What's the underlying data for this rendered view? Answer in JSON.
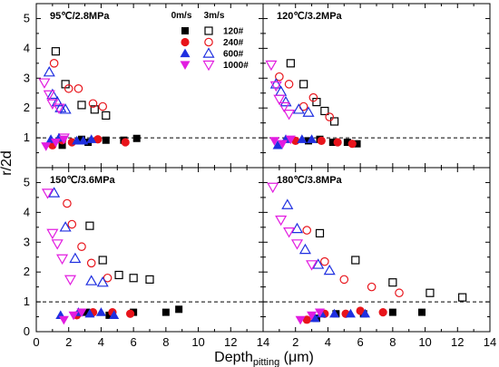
{
  "chart_data": {
    "type": "scatter",
    "layout": "2x2 panels with shared axes",
    "ylabel": "r/2d",
    "xlabel": "Depth",
    "xlabel_subscript": "pitting",
    "xlabel_unit": " (μm)",
    "xlim": [
      0,
      14
    ],
    "ylim": [
      0,
      5.5
    ],
    "x_ticks": [
      "0",
      "2",
      "4",
      "6",
      "8",
      "10",
      "12",
      "14"
    ],
    "y_ticks": [
      "0",
      "1",
      "2",
      "3",
      "4",
      "5"
    ],
    "reference_line": 1,
    "legend": {
      "location": "top-left panel, top-right",
      "col_headers": [
        "0m/s",
        "3m/s"
      ],
      "entries": [
        {
          "label": "120#",
          "color": "#000000",
          "marker": "square"
        },
        {
          "label": "240#",
          "color": "#e8141b",
          "marker": "circle"
        },
        {
          "label": "600#",
          "color": "#1f2fe0",
          "marker": "triangle-up"
        },
        {
          "label": "1000#",
          "color": "#e21ce0",
          "marker": "triangle-down"
        }
      ]
    },
    "panels": [
      {
        "title": "95℃/2.8MPa",
        "series": {
          "filled_0ms": {
            "120#": [
              [
                1.6,
                0.75
              ],
              [
                2.8,
                0.95
              ],
              [
                3.2,
                0.85
              ],
              [
                4.3,
                0.92
              ],
              [
                5.4,
                0.92
              ],
              [
                6.2,
                0.98
              ]
            ],
            "240#": [
              [
                1.0,
                0.75
              ],
              [
                1.6,
                0.92
              ],
              [
                2.2,
                0.85
              ],
              [
                3.8,
                0.95
              ],
              [
                5.5,
                0.85
              ]
            ],
            "600#": [
              [
                0.9,
                0.95
              ],
              [
                1.4,
                1.0
              ],
              [
                2.5,
                0.9
              ],
              [
                2.9,
                0.9
              ],
              [
                3.4,
                0.95
              ]
            ],
            "1000#": [
              [
                0.6,
                0.72
              ],
              [
                1.2,
                0.85
              ],
              [
                1.7,
                0.95
              ]
            ]
          },
          "open_3ms": {
            "120#": [
              [
                1.2,
                3.9
              ],
              [
                1.8,
                2.8
              ],
              [
                2.8,
                2.1
              ],
              [
                3.6,
                1.95
              ],
              [
                4.3,
                1.75
              ]
            ],
            "240#": [
              [
                1.1,
                3.5
              ],
              [
                2.0,
                2.65
              ],
              [
                2.6,
                2.65
              ],
              [
                3.5,
                2.15
              ],
              [
                4.1,
                2.05
              ]
            ],
            "600#": [
              [
                0.8,
                3.2
              ],
              [
                1.0,
                2.45
              ],
              [
                1.3,
                2.2
              ],
              [
                1.5,
                2.0
              ],
              [
                1.8,
                1.95
              ]
            ],
            "1000#": [
              [
                0.5,
                2.85
              ],
              [
                0.8,
                2.45
              ],
              [
                1.0,
                2.15
              ],
              [
                1.4,
                2.0
              ],
              [
                1.7,
                1.0
              ]
            ]
          }
        }
      },
      {
        "title": "120℃/3.2MPa",
        "series": {
          "filled_0ms": {
            "120#": [
              [
                2.8,
                0.9
              ],
              [
                3.5,
                0.95
              ],
              [
                4.3,
                0.85
              ],
              [
                5.2,
                0.85
              ],
              [
                5.8,
                0.8
              ]
            ],
            "240#": [
              [
                2.0,
                0.9
              ],
              [
                3.6,
                0.9
              ],
              [
                4.6,
                0.85
              ],
              [
                5.5,
                0.8
              ]
            ],
            "600#": [
              [
                0.9,
                0.75
              ],
              [
                1.4,
                0.95
              ],
              [
                2.4,
                0.95
              ],
              [
                3.0,
                0.95
              ]
            ],
            "1000#": [
              [
                0.7,
                0.9
              ],
              [
                1.2,
                0.8
              ],
              [
                1.7,
                0.95
              ]
            ]
          },
          "open_3ms": {
            "120#": [
              [
                1.7,
                3.5
              ],
              [
                2.5,
                2.8
              ],
              [
                3.3,
                2.2
              ],
              [
                3.8,
                1.9
              ],
              [
                4.4,
                1.55
              ]
            ],
            "240#": [
              [
                1.0,
                3.05
              ],
              [
                1.6,
                2.8
              ],
              [
                2.5,
                2.05
              ],
              [
                3.1,
                2.35
              ],
              [
                4.1,
                1.7
              ]
            ],
            "600#": [
              [
                0.8,
                2.8
              ],
              [
                1.1,
                2.55
              ],
              [
                1.4,
                2.2
              ],
              [
                2.2,
                1.95
              ],
              [
                2.8,
                1.85
              ]
            ],
            "1000#": [
              [
                0.5,
                3.45
              ],
              [
                0.8,
                2.75
              ],
              [
                1.0,
                2.3
              ],
              [
                1.3,
                2.05
              ],
              [
                1.6,
                1.8
              ]
            ]
          }
        }
      },
      {
        "title": "150℃/3.6MPa",
        "series": {
          "filled_0ms": {
            "120#": [
              [
                3.1,
                0.65
              ],
              [
                4.5,
                0.55
              ],
              [
                6.0,
                0.65
              ],
              [
                8.0,
                0.65
              ],
              [
                8.8,
                0.75
              ]
            ],
            "240#": [
              [
                2.5,
                0.55
              ],
              [
                3.5,
                0.65
              ],
              [
                4.7,
                0.65
              ],
              [
                5.8,
                0.6
              ]
            ],
            "600#": [
              [
                1.5,
                0.55
              ],
              [
                2.6,
                0.65
              ],
              [
                3.3,
                0.6
              ],
              [
                4.0,
                0.65
              ],
              [
                4.8,
                0.55
              ]
            ],
            "1000#": [
              [
                1.7,
                0.4
              ],
              [
                2.3,
                0.55
              ],
              [
                2.8,
                0.65
              ]
            ]
          },
          "open_3ms": {
            "120#": [
              [
                3.3,
                3.55
              ],
              [
                4.1,
                2.4
              ],
              [
                5.1,
                1.9
              ],
              [
                6.0,
                1.8
              ],
              [
                7.0,
                1.75
              ]
            ],
            "240#": [
              [
                1.9,
                4.3
              ],
              [
                2.2,
                3.6
              ],
              [
                2.8,
                2.85
              ],
              [
                3.4,
                2.3
              ],
              [
                4.4,
                1.8
              ]
            ],
            "600#": [
              [
                1.1,
                4.65
              ],
              [
                1.8,
                3.5
              ],
              [
                2.4,
                2.45
              ],
              [
                3.4,
                1.7
              ],
              [
                4.1,
                1.65
              ]
            ],
            "1000#": [
              [
                0.7,
                4.65
              ],
              [
                1.0,
                3.3
              ],
              [
                1.3,
                2.95
              ],
              [
                1.6,
                2.45
              ],
              [
                2.1,
                1.75
              ]
            ]
          }
        }
      },
      {
        "title": "180℃/3.8MPa",
        "series": {
          "filled_0ms": {
            "120#": [
              [
                3.3,
                0.45
              ],
              [
                4.5,
                0.6
              ],
              [
                6.2,
                0.6
              ],
              [
                8.0,
                0.65
              ],
              [
                9.8,
                0.65
              ]
            ],
            "240#": [
              [
                2.7,
                0.4
              ],
              [
                3.8,
                0.6
              ],
              [
                5.1,
                0.6
              ],
              [
                6.0,
                0.7
              ],
              [
                7.4,
                0.65
              ]
            ],
            "600#": [
              [
                3.2,
                0.45
              ],
              [
                3.6,
                0.6
              ],
              [
                4.4,
                0.6
              ],
              [
                5.4,
                0.6
              ],
              [
                6.3,
                0.6
              ]
            ],
            "1000#": [
              [
                2.3,
                0.4
              ],
              [
                3.0,
                0.55
              ],
              [
                3.5,
                0.65
              ]
            ]
          },
          "open_3ms": {
            "120#": [
              [
                3.5,
                3.3
              ],
              [
                5.7,
                2.4
              ],
              [
                8.0,
                1.65
              ],
              [
                10.3,
                1.3
              ],
              [
                12.3,
                1.15
              ]
            ],
            "240#": [
              [
                2.7,
                3.4
              ],
              [
                3.8,
                2.35
              ],
              [
                5.0,
                1.75
              ],
              [
                6.7,
                1.5
              ],
              [
                8.4,
                1.3
              ]
            ],
            "600#": [
              [
                1.5,
                4.25
              ],
              [
                2.1,
                3.45
              ],
              [
                2.6,
                2.75
              ],
              [
                3.4,
                2.25
              ],
              [
                4.1,
                2.05
              ]
            ],
            "1000#": [
              [
                0.6,
                4.85
              ],
              [
                1.1,
                3.75
              ],
              [
                1.6,
                3.35
              ],
              [
                2.1,
                2.95
              ],
              [
                3.0,
                2.25
              ]
            ]
          }
        }
      }
    ]
  }
}
